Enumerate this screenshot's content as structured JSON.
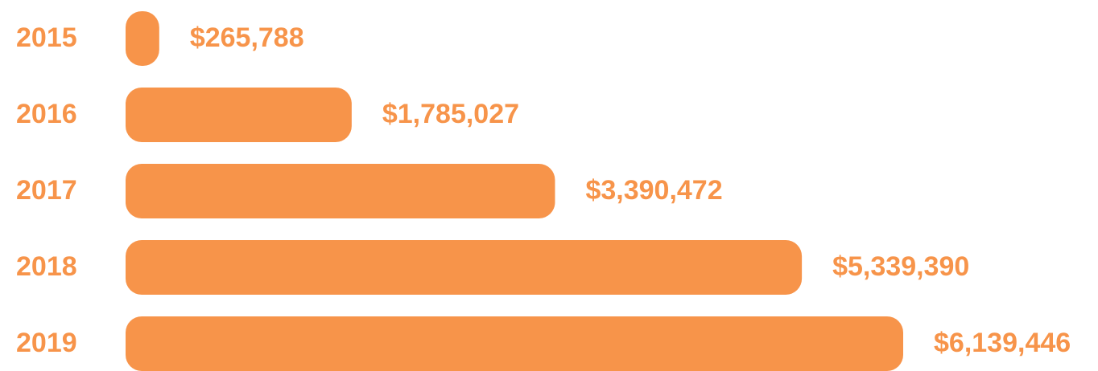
{
  "chart_data": {
    "type": "bar",
    "orientation": "horizontal",
    "categories": [
      "2015",
      "2016",
      "2017",
      "2018",
      "2019"
    ],
    "values": [
      265788,
      1785027,
      3390472,
      5339390,
      6139446
    ],
    "value_labels": [
      "$265,788",
      "$1,785,027",
      "$3,390,472",
      "$5,339,390",
      "$6,139,446"
    ],
    "color": "#f7944a"
  }
}
